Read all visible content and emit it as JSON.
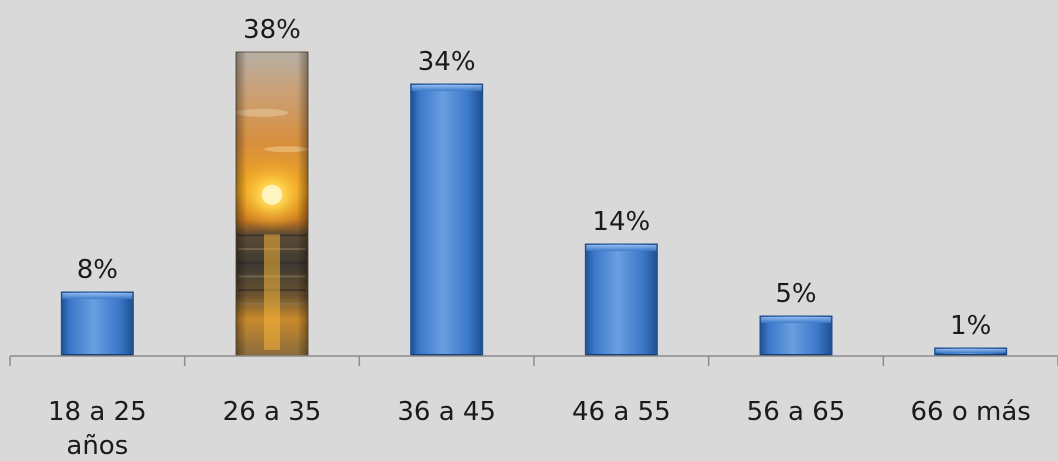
{
  "chart_data": {
    "type": "bar",
    "categories": [
      "18 a 25 años",
      "26 a 35",
      "36 a 45",
      "46 a 55",
      "56 a 65",
      "66 o más"
    ],
    "category_lines": [
      [
        "18 a 25",
        "años"
      ],
      [
        "26 a 35"
      ],
      [
        "36 a 45"
      ],
      [
        "46 a 55"
      ],
      [
        "56 a 65"
      ],
      [
        "66 o más"
      ]
    ],
    "values": [
      8,
      38,
      34,
      14,
      5,
      1
    ],
    "data_labels": [
      "8%",
      "38%",
      "34%",
      "14%",
      "5%",
      "1%"
    ],
    "highlighted_index": 1,
    "highlight_fill": "sunset-photo",
    "ylim": [
      0,
      38
    ],
    "grid": false,
    "legend": "none",
    "colors": {
      "bar": "#3b78c9",
      "bar_light": "#7eaee8",
      "bar_dark": "#1e4f8f",
      "background": "#d9d9d9",
      "axis": "#8c8c8c",
      "text": "#1a1a1a"
    }
  }
}
